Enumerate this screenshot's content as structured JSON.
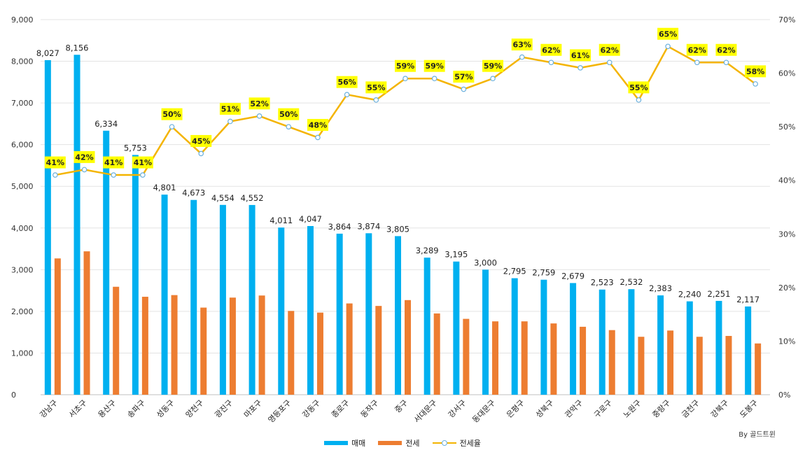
{
  "chart_data": {
    "type": "bar",
    "categories": [
      "강남구",
      "서초구",
      "용산구",
      "송파구",
      "성동구",
      "양천구",
      "광진구",
      "마포구",
      "영등포구",
      "강동구",
      "종로구",
      "동작구",
      "중구",
      "서대문구",
      "강서구",
      "동대문구",
      "은평구",
      "성북구",
      "관악구",
      "구로구",
      "노원구",
      "중랑구",
      "금천구",
      "강북구",
      "도봉구"
    ],
    "series": [
      {
        "name": "매매",
        "axis": "left",
        "color": "#00b0f0",
        "values": [
          8027,
          8156,
          6334,
          5753,
          4801,
          4673,
          4554,
          4552,
          4011,
          4047,
          3864,
          3874,
          3805,
          3289,
          3195,
          3000,
          2795,
          2759,
          2679,
          2523,
          2532,
          2383,
          2240,
          2251,
          2117
        ],
        "labels": [
          "8,027",
          "8,156",
          "6,334",
          "5,753",
          "4,801",
          "4,673",
          "4,554",
          "4,552",
          "4,011",
          "4,047",
          "3,864",
          "3,874",
          "3,805",
          "3,289",
          "3,195",
          "3,000",
          "2,795",
          "2,759",
          "2,679",
          "2,523",
          "2,532",
          "2,383",
          "2,240",
          "2,251",
          "2,117"
        ]
      },
      {
        "name": "전세",
        "axis": "left",
        "color": "#ed7d31",
        "values": [
          3270,
          3440,
          2590,
          2350,
          2390,
          2090,
          2330,
          2380,
          2010,
          1970,
          2190,
          2130,
          2270,
          1950,
          1820,
          1760,
          1760,
          1710,
          1630,
          1550,
          1390,
          1540,
          1390,
          1410,
          1230
        ]
      },
      {
        "name": "전세율",
        "axis": "right",
        "type": "line",
        "color": "#f4b400",
        "values": [
          41,
          42,
          41,
          41,
          50,
          45,
          51,
          52,
          50,
          48,
          56,
          55,
          59,
          59,
          57,
          59,
          63,
          62,
          61,
          62,
          55,
          65,
          62,
          62,
          58
        ],
        "labels": [
          "41%",
          "42%",
          "41%",
          "41%",
          "50%",
          "45%",
          "51%",
          "52%",
          "50%",
          "48%",
          "56%",
          "55%",
          "59%",
          "59%",
          "57%",
          "59%",
          "63%",
          "62%",
          "61%",
          "62%",
          "55%",
          "65%",
          "62%",
          "62%",
          "58%"
        ]
      }
    ],
    "left_axis": {
      "min": 0,
      "max": 9000,
      "step": 1000,
      "tick_labels": [
        "0",
        "1,000",
        "2,000",
        "3,000",
        "4,000",
        "5,000",
        "6,000",
        "7,000",
        "8,000",
        "9,000"
      ]
    },
    "right_axis": {
      "min": 0,
      "max": 70,
      "step": 10,
      "tick_labels": [
        "0%",
        "10%",
        "20%",
        "30%",
        "40%",
        "50%",
        "60%",
        "70%"
      ]
    },
    "legend": [
      "매매",
      "전세",
      "전세율"
    ],
    "legend_position": "bottom",
    "grid": true,
    "credit": "By 골드트윈",
    "label_highlight_color": "#ffff00",
    "marker_color": "#6ab0de"
  }
}
